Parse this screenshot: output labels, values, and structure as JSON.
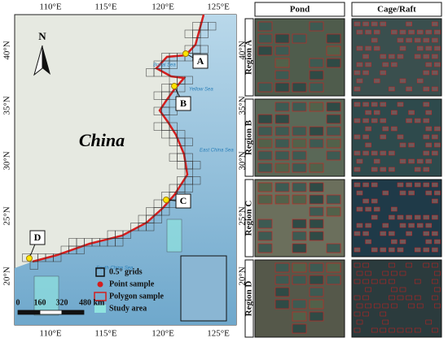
{
  "map": {
    "lon_labels": [
      "110°E",
      "115°E",
      "120°E",
      "125°E"
    ],
    "lat_labels": [
      "40°N",
      "35°N",
      "30°N",
      "25°N",
      "20°N"
    ],
    "country": "China",
    "north": "N",
    "sea_labels": [
      "Bohai Sea",
      "Yellow Sea",
      "East China Sea",
      "South China Sea"
    ],
    "sites": [
      "A",
      "B",
      "C",
      "D"
    ],
    "legend": [
      "0.5° grids",
      "Point sample",
      "Polygon sample",
      "Study area"
    ],
    "scale": [
      "0",
      "160",
      "320",
      "480 km"
    ]
  },
  "panel": {
    "columns": [
      "Pond",
      "Cage/Raft"
    ],
    "rows": [
      "Region A",
      "Region B",
      "Region C",
      "Region D"
    ]
  }
}
